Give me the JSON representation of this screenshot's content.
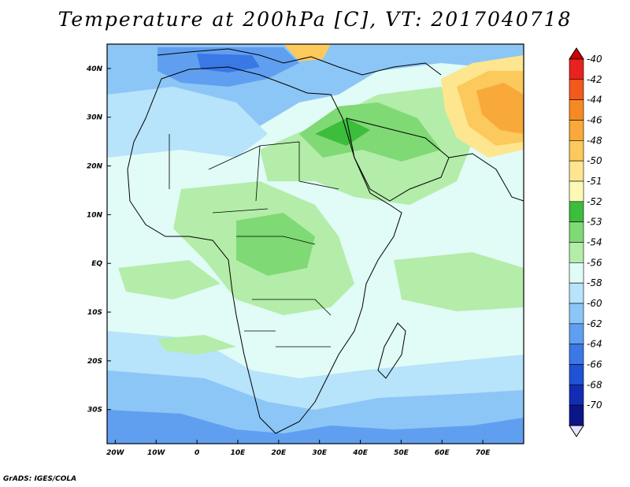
{
  "title": "Temperature at 200hPa [C], VT: 2017040718",
  "credit": "GrADS: IGES/COLA",
  "map": {
    "lon_range": [
      -22,
      80
    ],
    "lat_range": [
      -37,
      45
    ],
    "lon_labels": [
      "20W",
      "10W",
      "0",
      "10E",
      "20E",
      "30E",
      "40E",
      "50E",
      "60E",
      "70E"
    ],
    "lon_values": [
      -20,
      -10,
      0,
      10,
      20,
      30,
      40,
      50,
      60,
      70
    ],
    "lat_labels": [
      "40N",
      "30N",
      "20N",
      "10N",
      "EQ",
      "10S",
      "20S",
      "30S"
    ],
    "lat_values": [
      40,
      30,
      20,
      10,
      0,
      -10,
      -20,
      -30
    ]
  },
  "colorbar": {
    "labels": [
      "-40",
      "-42",
      "-44",
      "-46",
      "-48",
      "-50",
      "-51",
      "-52",
      "-53",
      "-54",
      "-56",
      "-58",
      "-60",
      "-62",
      "-64",
      "-66",
      "-68",
      "-70"
    ],
    "colors": [
      "#e8221e",
      "#f25a1b",
      "#f58a22",
      "#f8a93a",
      "#fbc95c",
      "#fde68f",
      "#fcf8b6",
      "#3cbd3c",
      "#7fd974",
      "#b3eda9",
      "#e1fbf6",
      "#b7e3fb",
      "#8cc6f6",
      "#609ff0",
      "#3a78e6",
      "#1f52d4",
      "#122db4",
      "#0a1586"
    ],
    "top_arrow_color": "#d00000",
    "bottom_arrow_color": "#e7e2ff"
  }
}
